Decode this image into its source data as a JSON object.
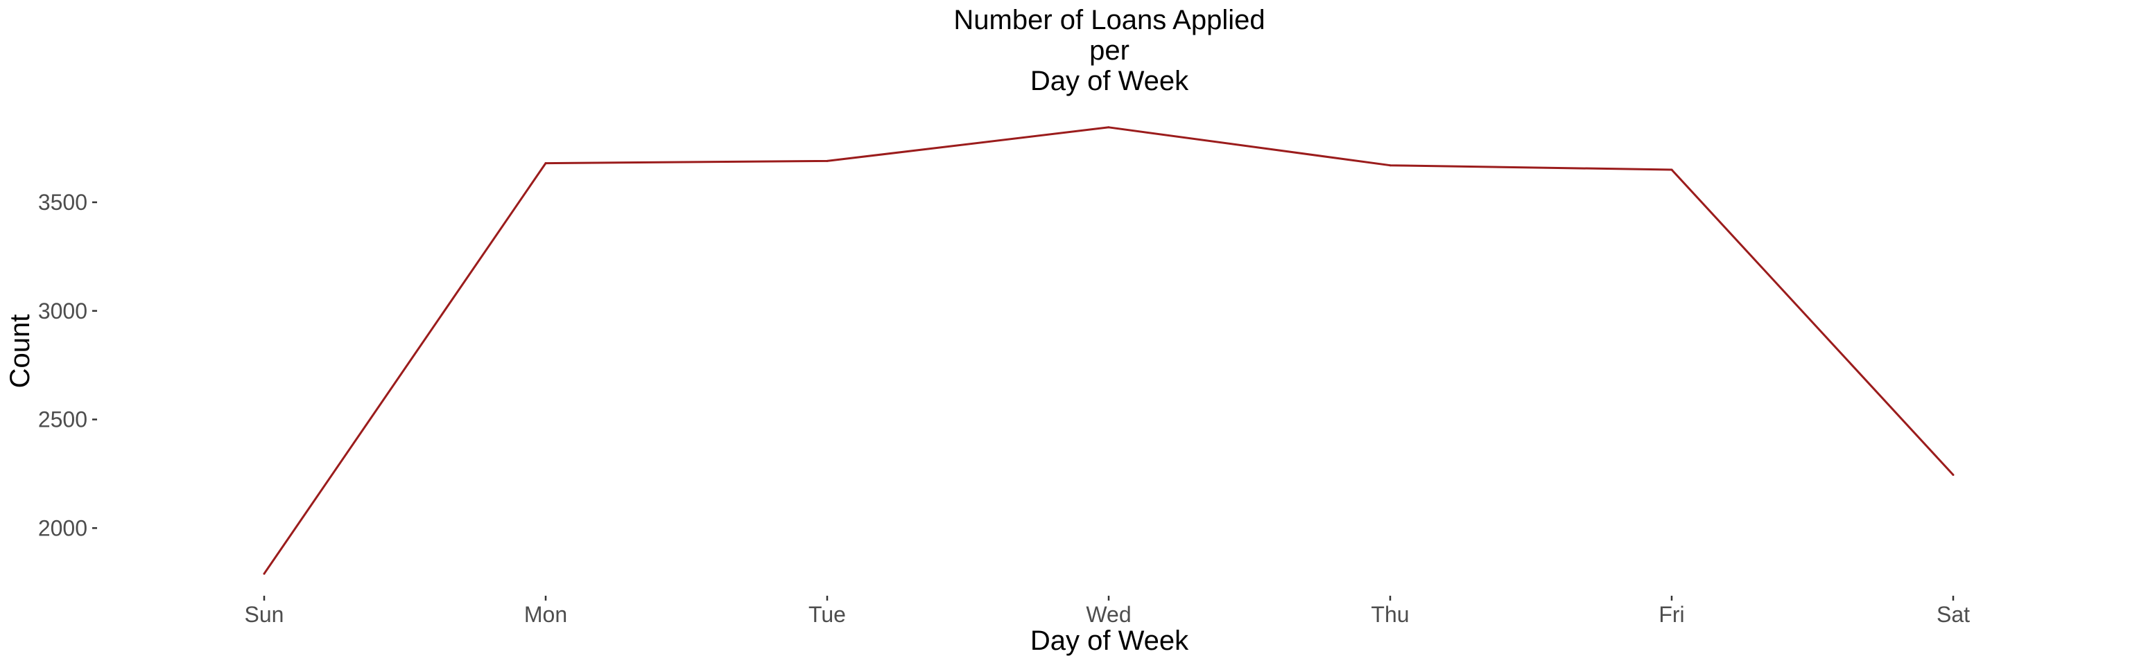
{
  "chart_data": {
    "type": "line",
    "title_lines": [
      "Number of Loans Applied",
      "per",
      "Day of Week"
    ],
    "xlabel": "Day of Week",
    "ylabel": "Count",
    "categories": [
      "Sun",
      "Mon",
      "Tue",
      "Wed",
      "Thu",
      "Fri",
      "Sat"
    ],
    "series": [
      {
        "values": [
          1790,
          3680,
          3690,
          3845,
          3670,
          3650,
          2245
        ]
      }
    ],
    "yticks": [
      2000,
      2500,
      3000,
      3500
    ],
    "ytick_labels": [
      "2000",
      "2500",
      "3000",
      "3500"
    ],
    "ylim": [
      1750,
      3930
    ],
    "grid": false,
    "legend": "none",
    "line_color": "#9b1c1c"
  }
}
